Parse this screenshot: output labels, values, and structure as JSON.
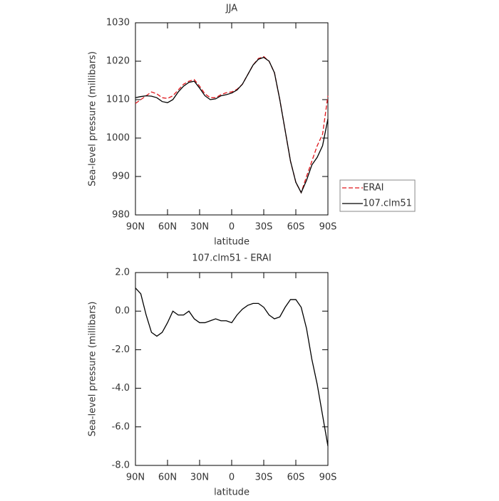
{
  "chart_data": [
    {
      "type": "line",
      "title": "JJA",
      "xlabel": "latitude",
      "ylabel": "Sea-level pressure (millibars)",
      "x": [
        90,
        85,
        80,
        75,
        70,
        65,
        60,
        55,
        50,
        45,
        40,
        35,
        30,
        25,
        20,
        15,
        10,
        5,
        0,
        -5,
        -10,
        -15,
        -20,
        -25,
        -30,
        -35,
        -40,
        -45,
        -50,
        -55,
        -60,
        -65,
        -70,
        -75,
        -80,
        -85,
        -90
      ],
      "xlim": [
        90,
        -90
      ],
      "xticks": [
        {
          "value": 90,
          "label": "90N"
        },
        {
          "value": 60,
          "label": "60N"
        },
        {
          "value": 30,
          "label": "30N"
        },
        0,
        {
          "value": -30,
          "label": "30S"
        },
        {
          "value": -60,
          "label": "60S"
        },
        {
          "value": -90,
          "label": "90S"
        }
      ],
      "ylim": [
        980,
        1030
      ],
      "yticks": [
        980,
        990,
        1000,
        1010,
        1020,
        1030
      ],
      "legend": "right",
      "series": [
        {
          "name": "ERAI",
          "color": "#e0161b",
          "dash": true,
          "values": [
            1009,
            1010,
            1011,
            1012,
            1011.5,
            1010.5,
            1010.3,
            1011,
            1012.5,
            1014,
            1014.8,
            1015.2,
            1013.5,
            1011.5,
            1010.5,
            1010.5,
            1011.3,
            1011.8,
            1012,
            1012.7,
            1014,
            1016.5,
            1019,
            1020.7,
            1021.2,
            1020,
            1017,
            1010,
            1002,
            994,
            988.5,
            985.8,
            990,
            994,
            998,
            1001,
            1011
          ]
        },
        {
          "name": "107.clm51",
          "color": "#000000",
          "dash": false,
          "values": [
            1010.5,
            1010.8,
            1011,
            1010.9,
            1010.5,
            1009.5,
            1009.2,
            1010,
            1012,
            1013.5,
            1014.5,
            1014.8,
            1013,
            1011,
            1010,
            1010.2,
            1011,
            1011.3,
            1011.7,
            1012.5,
            1014,
            1016.5,
            1019,
            1020.5,
            1021,
            1020,
            1017,
            1010,
            1002,
            994,
            988.5,
            985.8,
            989,
            993,
            995,
            998,
            1005
          ]
        }
      ]
    },
    {
      "type": "line",
      "title": "107.clm51 - ERAI",
      "xlabel": "latitude",
      "ylabel": "Sea-level pressure (millibars)",
      "x": [
        90,
        85,
        80,
        75,
        70,
        65,
        60,
        55,
        50,
        45,
        40,
        35,
        30,
        25,
        20,
        15,
        10,
        5,
        0,
        -5,
        -10,
        -15,
        -20,
        -25,
        -30,
        -35,
        -40,
        -45,
        -50,
        -55,
        -60,
        -65,
        -70,
        -75,
        -80,
        -85,
        -90
      ],
      "xlim": [
        90,
        -90
      ],
      "xticks": [
        {
          "value": 90,
          "label": "90N"
        },
        {
          "value": 60,
          "label": "60N"
        },
        {
          "value": 30,
          "label": "30N"
        },
        0,
        {
          "value": -30,
          "label": "30S"
        },
        {
          "value": -60,
          "label": "60S"
        },
        {
          "value": -90,
          "label": "90S"
        }
      ],
      "ylim": [
        -8,
        2
      ],
      "yticks": [
        {
          "value": -8,
          "label": "-8.0"
        },
        {
          "value": -6,
          "label": "-6.0"
        },
        {
          "value": -4,
          "label": "-4.0"
        },
        {
          "value": -2,
          "label": "-2.0"
        },
        {
          "value": 0,
          "label": "0.0"
        },
        {
          "value": 2,
          "label": "2.0"
        }
      ],
      "series": [
        {
          "color": "#000000",
          "dash": false,
          "values": [
            1.2,
            0.9,
            -0.2,
            -1.1,
            -1.3,
            -1.1,
            -0.6,
            0.0,
            -0.2,
            -0.2,
            0.0,
            -0.4,
            -0.6,
            -0.6,
            -0.5,
            -0.4,
            -0.5,
            -0.5,
            -0.6,
            -0.2,
            0.1,
            0.3,
            0.4,
            0.4,
            0.2,
            -0.2,
            -0.4,
            -0.3,
            0.2,
            0.6,
            0.6,
            0.2,
            -0.9,
            -2.5,
            -3.8,
            -5.4,
            -7.0
          ]
        }
      ]
    }
  ]
}
